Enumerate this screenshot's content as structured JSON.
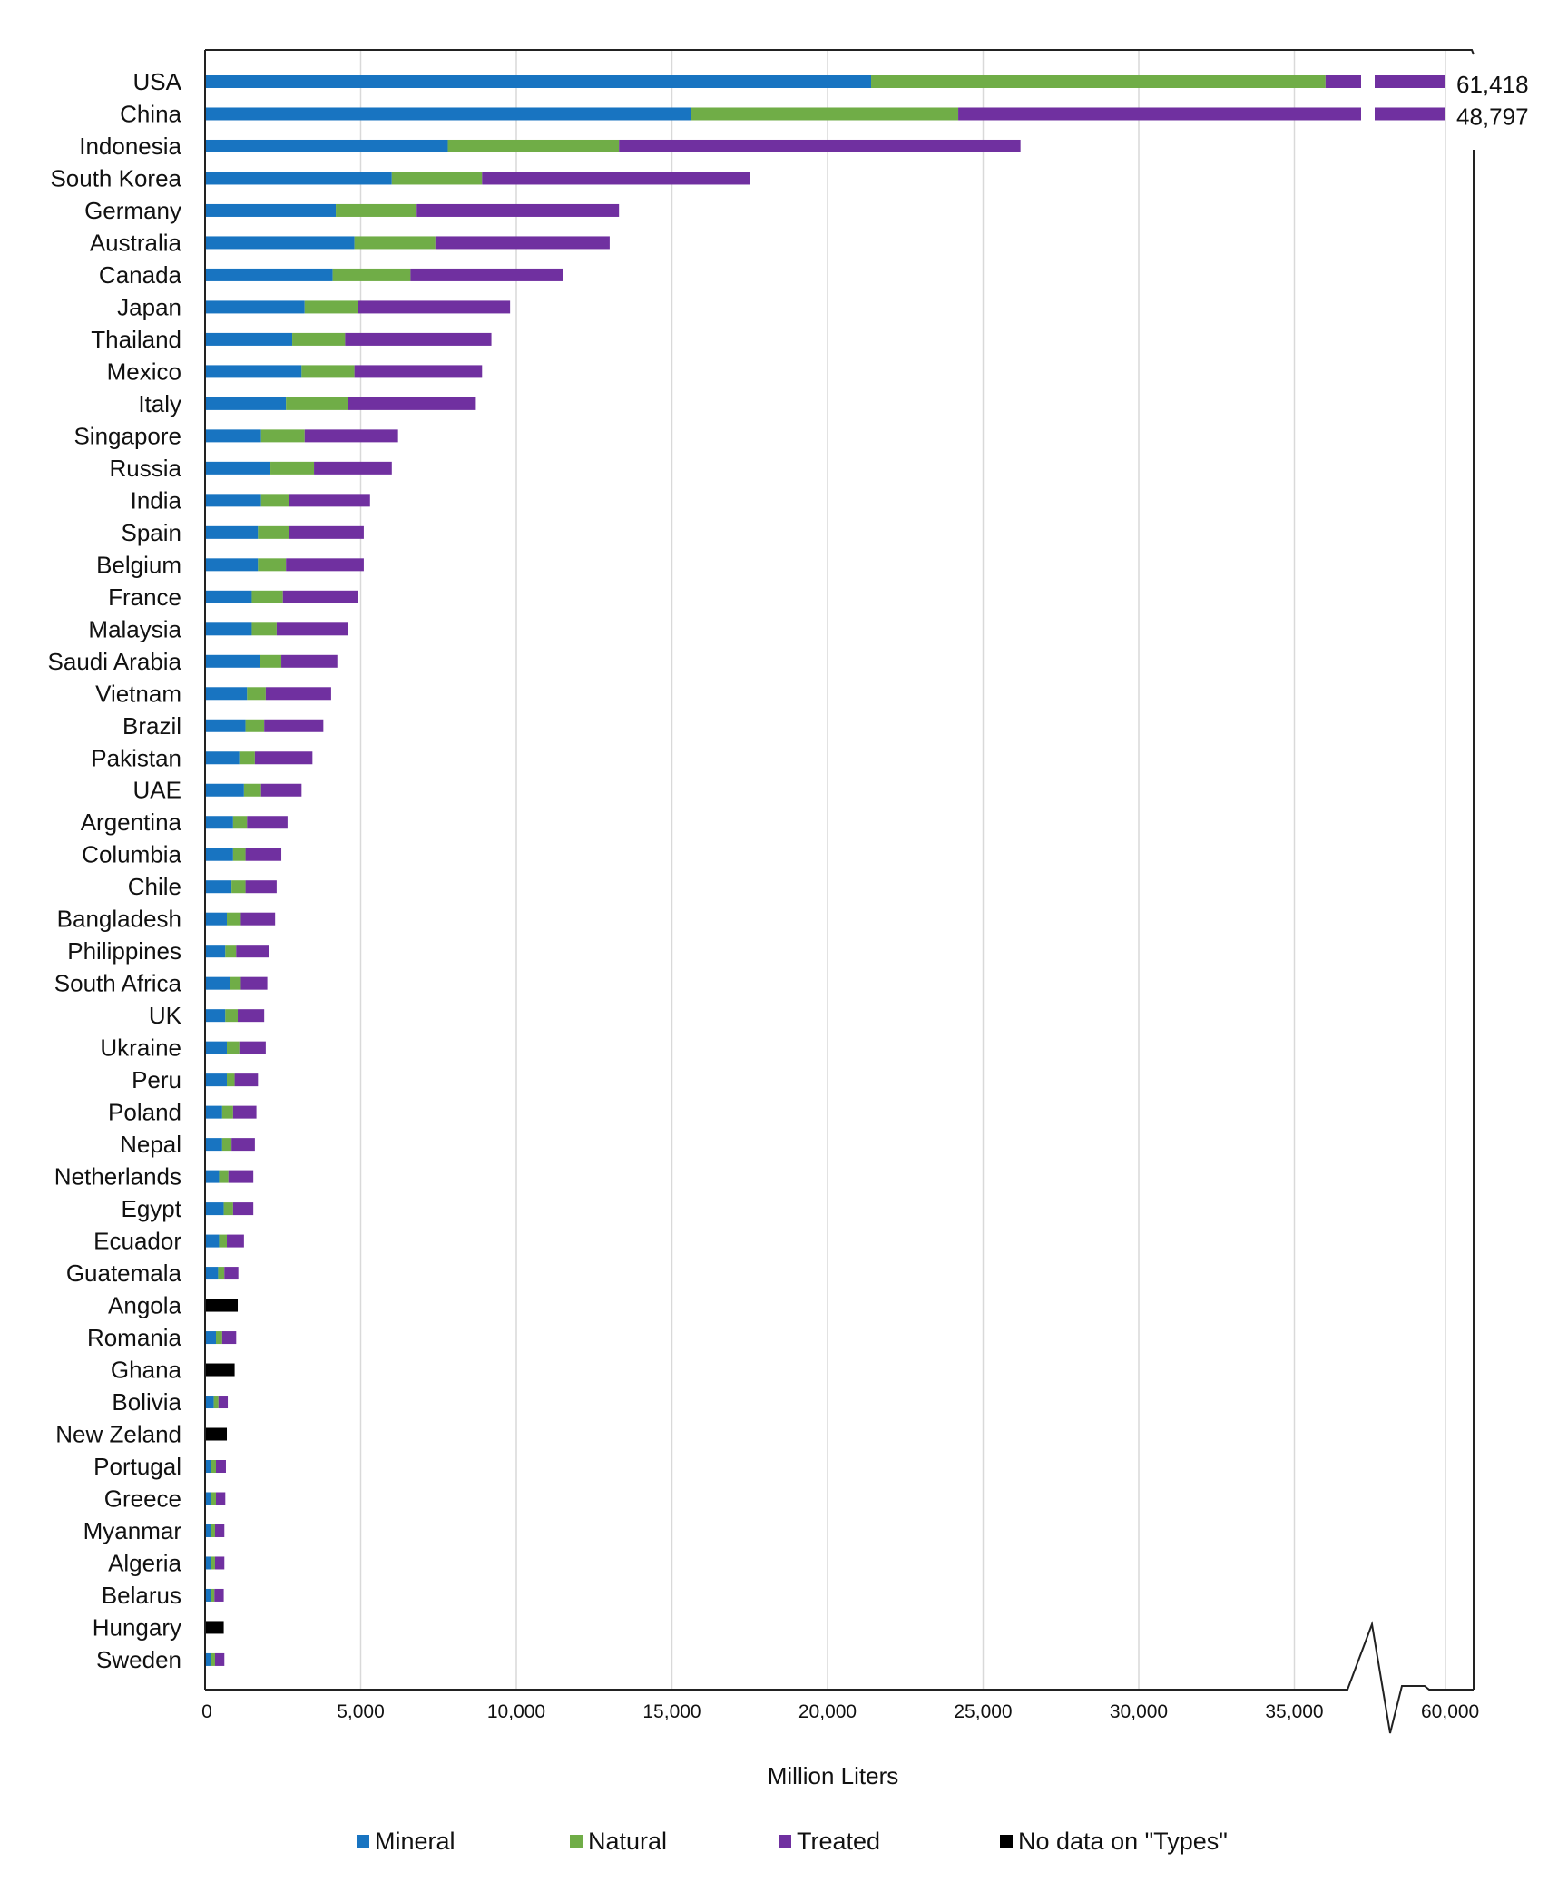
{
  "chart_data": {
    "type": "bar",
    "orientation": "horizontal",
    "stacked": true,
    "xlabel": "Million Liters",
    "xlim": [
      0,
      60000
    ],
    "x_ticks": [
      "0",
      "5,000",
      "10,000",
      "15,000",
      "20,000",
      "25,000",
      "30,000",
      "35,000",
      "60,000"
    ],
    "grid": "vertical",
    "axis_break": true,
    "legend_position": "bottom",
    "colors": {
      "Mineral": "#1874c1",
      "Natural": "#70ad47",
      "Treated": "#7030a0",
      "No data on \"Types\"": "#000000"
    },
    "legend": [
      "Mineral",
      "Natural",
      "Treated",
      "No data on \"Types\""
    ],
    "categories": [
      "USA",
      "China",
      "Indonesia",
      "South Korea",
      "Germany",
      "Australia",
      "Canada",
      "Japan",
      "Thailand",
      "Mexico",
      "Italy",
      "Singapore",
      "Russia",
      "India",
      "Spain",
      "Belgium",
      "France",
      "Malaysia",
      "Saudi Arabia",
      "Vietnam",
      "Brazil",
      "Pakistan",
      "UAE",
      "Argentina",
      "Columbia",
      "Chile",
      "Bangladesh",
      "Philippines",
      "South Africa",
      "UK",
      "Ukraine",
      "Peru",
      "Poland",
      "Nepal",
      "Netherlands",
      "Egypt",
      "Ecuador",
      "Guatemala",
      "Angola",
      "Romania",
      "Ghana",
      "Bolivia",
      "New Zeland",
      "Portugal",
      "Greece",
      "Myanmar",
      "Algeria",
      "Belarus",
      "Hungary",
      "Sweden"
    ],
    "series": [
      {
        "name": "Mineral",
        "values": [
          21400,
          15600,
          7800,
          6000,
          4200,
          4800,
          4100,
          3200,
          2800,
          3100,
          2600,
          1800,
          2100,
          1800,
          1700,
          1700,
          1500,
          1500,
          1750,
          1350,
          1300,
          1100,
          1250,
          900,
          900,
          850,
          700,
          650,
          800,
          650,
          700,
          700,
          550,
          550,
          450,
          600,
          450,
          420,
          0,
          350,
          0,
          280,
          0,
          200,
          200,
          200,
          200,
          180,
          0,
          200
        ]
      },
      {
        "name": "Natural",
        "values": [
          14600,
          8600,
          5500,
          2900,
          2600,
          2600,
          2500,
          1700,
          1700,
          1700,
          2000,
          1400,
          1400,
          900,
          1000,
          900,
          1000,
          800,
          700,
          600,
          600,
          500,
          550,
          450,
          400,
          450,
          450,
          350,
          350,
          400,
          400,
          250,
          350,
          300,
          300,
          300,
          250,
          200,
          0,
          200,
          0,
          150,
          0,
          150,
          150,
          120,
          120,
          120,
          0,
          120
        ]
      },
      {
        "name": "Treated",
        "values": [
          25418,
          24597,
          12900,
          8600,
          6500,
          5600,
          4900,
          4900,
          4700,
          4100,
          4100,
          3000,
          2500,
          2600,
          2400,
          2500,
          2400,
          2300,
          1800,
          2100,
          1900,
          1850,
          1300,
          1300,
          1150,
          1000,
          1100,
          1050,
          850,
          850,
          850,
          750,
          750,
          750,
          800,
          650,
          550,
          450,
          0,
          450,
          0,
          300,
          0,
          320,
          300,
          300,
          300,
          300,
          0,
          300
        ]
      },
      {
        "name": "No data on \"Types\"",
        "values": [
          0,
          0,
          0,
          0,
          0,
          0,
          0,
          0,
          0,
          0,
          0,
          0,
          0,
          0,
          0,
          0,
          0,
          0,
          0,
          0,
          0,
          0,
          0,
          0,
          0,
          0,
          0,
          0,
          0,
          0,
          0,
          0,
          0,
          0,
          0,
          0,
          0,
          0,
          1050,
          0,
          950,
          0,
          700,
          0,
          0,
          0,
          0,
          0,
          600,
          0
        ]
      }
    ],
    "annotations": [
      {
        "category": "USA",
        "text": "61,418"
      },
      {
        "category": "China",
        "text": "48,797"
      }
    ]
  }
}
